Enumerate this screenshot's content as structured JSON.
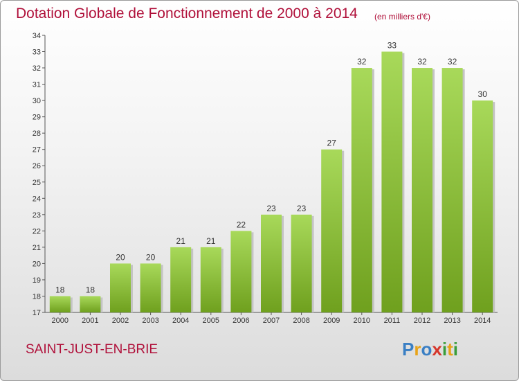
{
  "header": {
    "title": "Dotation Globale de Fonctionnement de 2000 à 2014",
    "subtitle": "(en milliers d'€)"
  },
  "footer": {
    "commune": "SAINT-JUST-EN-BRIE",
    "logo_text": "Proxiti",
    "logo_colors": [
      "#3a7fc4",
      "#e8a317",
      "#3a7fc4",
      "#d6362b",
      "#3a9d3a",
      "#e8a317",
      "#3a9d3a"
    ]
  },
  "colors": {
    "bar_light": "#a8d95a",
    "bar_dark": "#6fa01e",
    "axis": "#555555",
    "title": "#b0103a"
  },
  "chart_data": {
    "type": "bar",
    "title": "Dotation Globale de Fonctionnement de 2000 à 2014",
    "subtitle": "(en milliers d'€)",
    "xlabel": "",
    "ylabel": "",
    "categories": [
      "2000",
      "2001",
      "2002",
      "2003",
      "2004",
      "2005",
      "2006",
      "2007",
      "2008",
      "2009",
      "2010",
      "2011",
      "2012",
      "2013",
      "2014"
    ],
    "values": [
      18,
      18,
      20,
      20,
      21,
      21,
      22,
      23,
      23,
      27,
      32,
      33,
      32,
      32,
      30
    ],
    "ylim": [
      17,
      34
    ],
    "yticks": [
      17,
      18,
      19,
      20,
      21,
      22,
      23,
      24,
      25,
      26,
      27,
      28,
      29,
      30,
      31,
      32,
      33,
      34
    ],
    "grid": false,
    "legend": "none"
  }
}
